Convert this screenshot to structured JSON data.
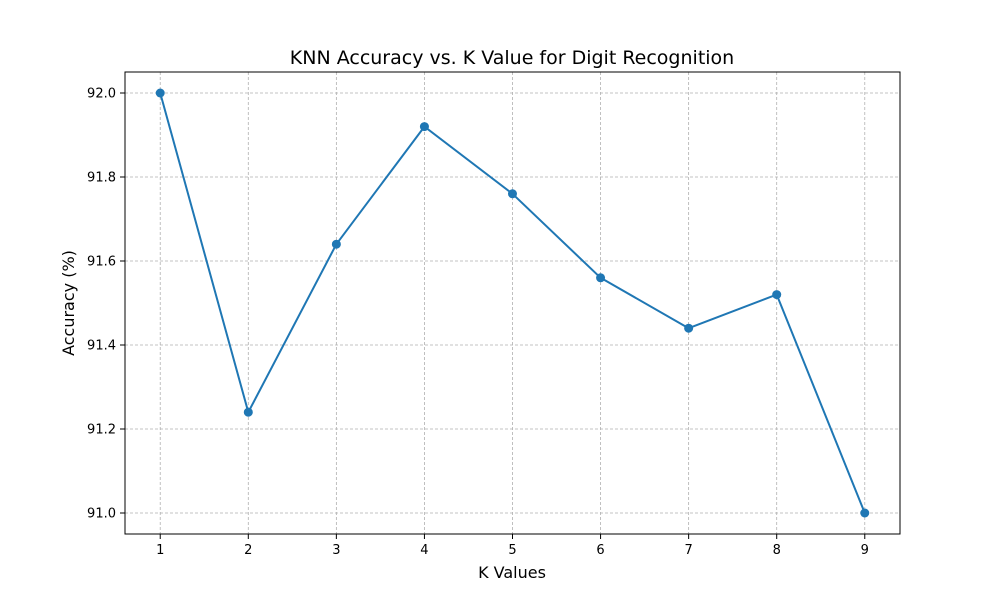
{
  "chart_data": {
    "type": "line",
    "title": "KNN Accuracy vs. K Value for Digit Recognition",
    "xlabel": "K Values",
    "ylabel": "Accuracy (%)",
    "x": [
      1,
      2,
      3,
      4,
      5,
      6,
      7,
      8,
      9
    ],
    "series": [
      {
        "values": [
          92.0,
          91.24,
          91.64,
          91.92,
          91.76,
          91.56,
          91.44,
          91.52,
          91.0
        ],
        "color": "#1f77b4",
        "marker": "circle"
      }
    ],
    "xticks": [
      "1",
      "2",
      "3",
      "4",
      "5",
      "6",
      "7",
      "8",
      "9"
    ],
    "yticks": [
      "91.0",
      "91.2",
      "91.4",
      "91.6",
      "91.8",
      "92.0"
    ],
    "xlim": [
      0.6,
      9.4
    ],
    "ylim": [
      90.95,
      92.05
    ],
    "grid": true
  }
}
